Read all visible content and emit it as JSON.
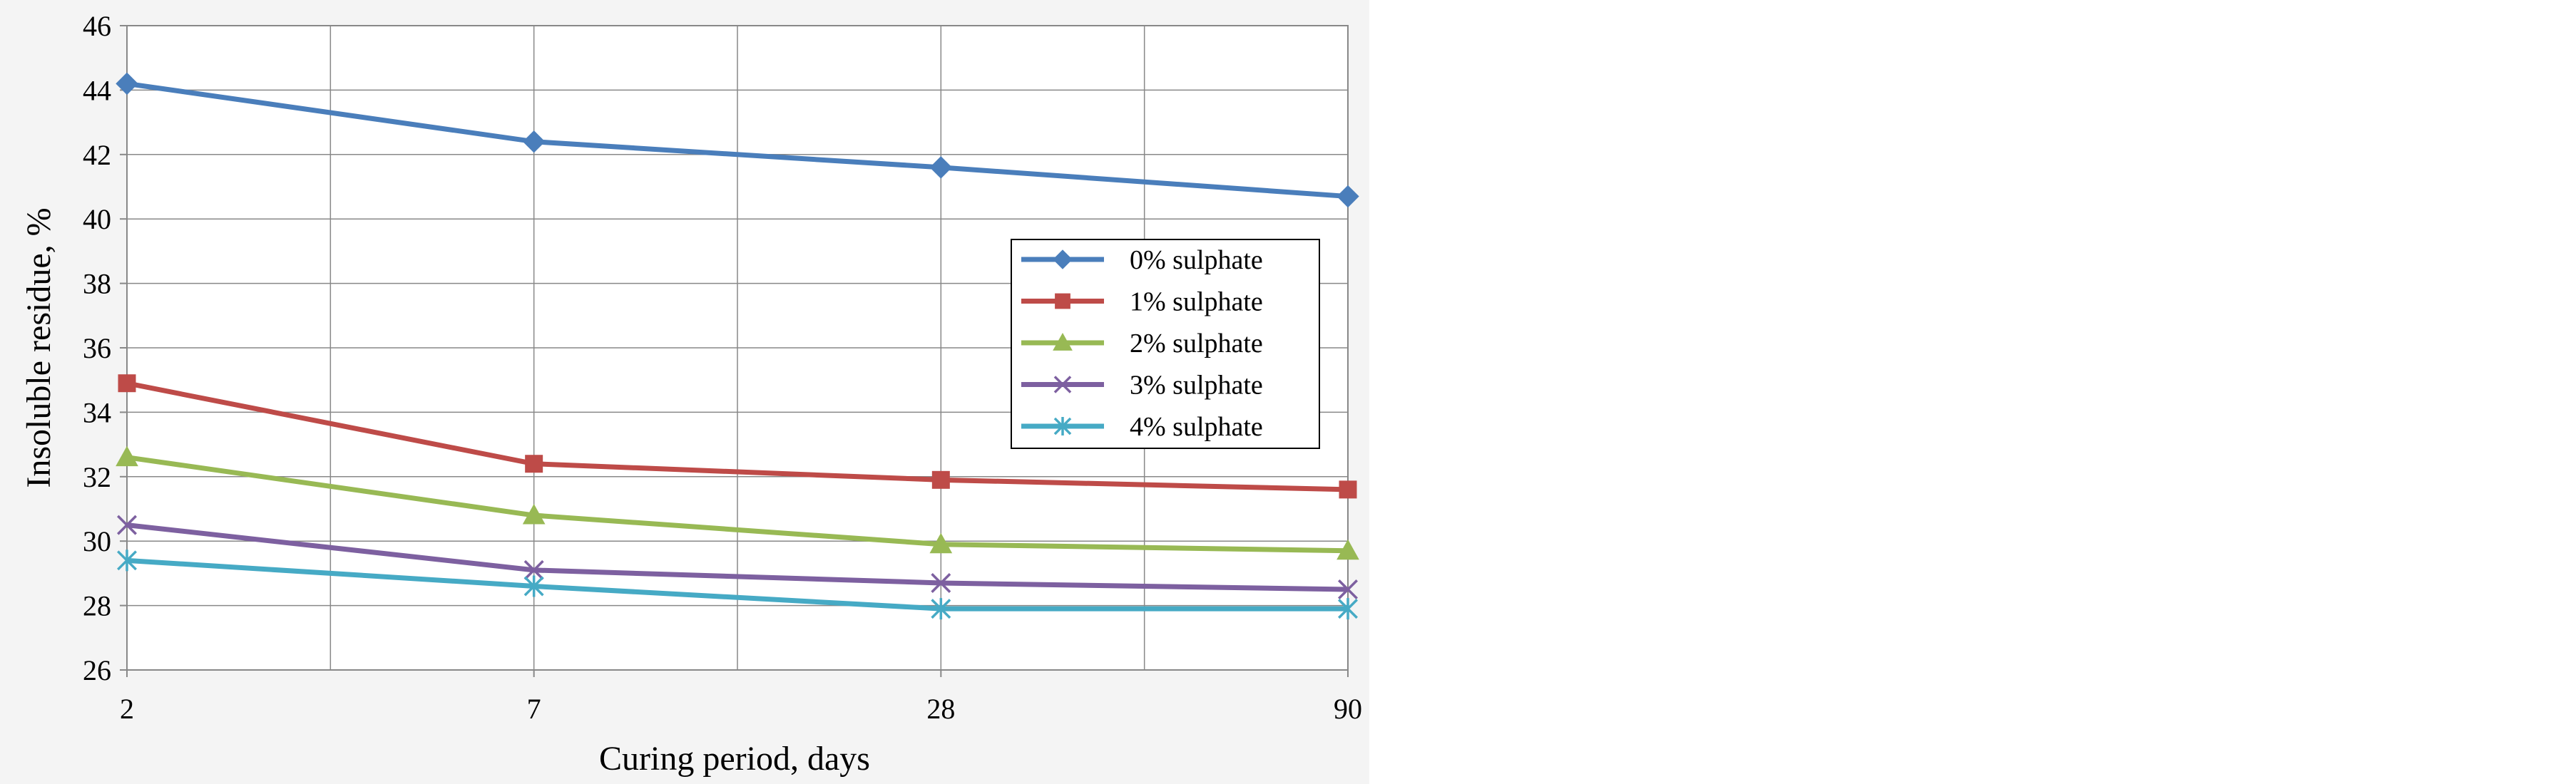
{
  "chart_data": {
    "type": "line",
    "categories": [
      "2",
      "7",
      "28",
      "90"
    ],
    "xlabel": "Curing period, days",
    "ylabel": "Insoluble residue, %",
    "ylim": [
      26,
      46
    ],
    "yticks": [
      "26",
      "28",
      "30",
      "32",
      "34",
      "36",
      "38",
      "40",
      "42",
      "44",
      "46"
    ],
    "grid": true,
    "legend_position": "right",
    "series": [
      {
        "name": "0% sulphate",
        "color": "#4a7ebb",
        "marker": "diamond",
        "values": [
          44.2,
          42.4,
          41.6,
          40.7
        ]
      },
      {
        "name": "1% sulphate",
        "color": "#be4b48",
        "marker": "square",
        "values": [
          34.9,
          32.4,
          31.9,
          31.6
        ]
      },
      {
        "name": "2% sulphate",
        "color": "#98b954",
        "marker": "triangle",
        "values": [
          32.6,
          30.8,
          29.9,
          29.7
        ]
      },
      {
        "name": "3% sulphate",
        "color": "#7d60a0",
        "marker": "x",
        "values": [
          30.5,
          29.1,
          28.7,
          28.5
        ]
      },
      {
        "name": "4% sulphate",
        "color": "#46aac5",
        "marker": "asterisk",
        "values": [
          29.4,
          28.6,
          27.9,
          27.9
        ]
      }
    ]
  }
}
